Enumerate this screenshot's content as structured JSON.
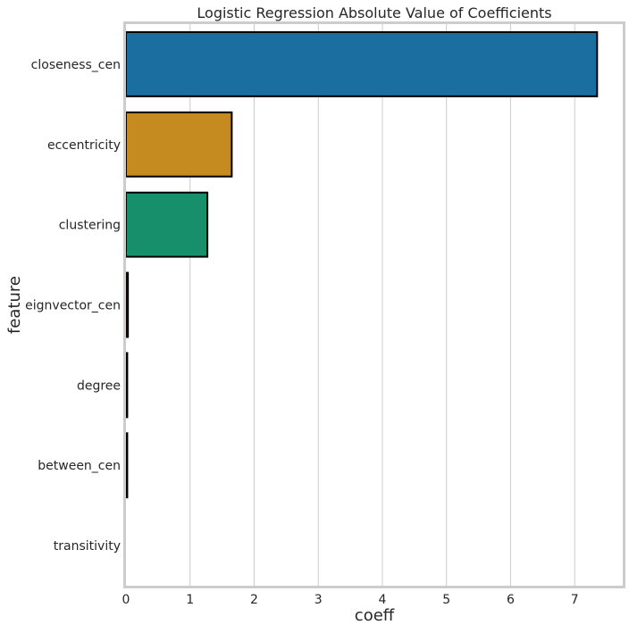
{
  "chart_data": {
    "type": "bar",
    "orientation": "horizontal",
    "title": "Logistic Regression Absolute Value of Coefficients",
    "xlabel": "coeff",
    "ylabel": "feature",
    "categories": [
      "closeness_cen",
      "eccentricity",
      "clustering",
      "eignvector_cen",
      "degree",
      "between_cen",
      "transitivity"
    ],
    "values": [
      7.35,
      1.65,
      1.27,
      0.03,
      0.02,
      0.02,
      0.0
    ],
    "colors": [
      "#1a6fa0",
      "#c58a20",
      "#168f6a",
      "#b0623a",
      "#c088b8",
      "#b89a6e",
      "#d8a0c0"
    ],
    "xlim": [
      0,
      7.75
    ],
    "xticks": [
      0,
      1,
      2,
      3,
      4,
      5,
      6,
      7
    ],
    "grid": "vertical",
    "legend": "none"
  }
}
